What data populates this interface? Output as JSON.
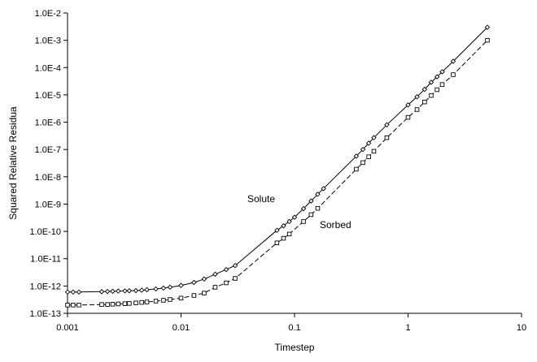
{
  "chart_data": {
    "type": "line",
    "title": "",
    "xlabel": "Timestep",
    "ylabel": "Squared Relative Residua",
    "xscale": "log",
    "yscale": "log",
    "xlim": [
      0.001,
      10
    ],
    "ylim": [
      1e-13,
      0.01
    ],
    "x_tick_labels": [
      "0.001",
      "0.01",
      "0.1",
      "1",
      "10"
    ],
    "y_tick_labels": [
      "1.0E-13",
      "1.0E-12",
      "1.0E-11",
      "1.0E-10",
      "1.0E-9",
      "1.0E-8",
      "1.0E-7",
      "1.0E-6",
      "1.0E-5",
      "1.0E-4",
      "1.0E-3",
      "1.0E-2"
    ],
    "grid": false,
    "legend": "none",
    "annotations": [
      {
        "text": "Solute",
        "series": "Solute"
      },
      {
        "text": "Sorbed",
        "series": "Sorbed"
      }
    ],
    "series": [
      {
        "name": "Solute",
        "line": "solid",
        "marker": "diamond",
        "color": "#000000",
        "x": [
          0.001,
          0.00112,
          0.00126,
          0.002,
          0.00225,
          0.0025,
          0.0028,
          0.0032,
          0.0035,
          0.004,
          0.0045,
          0.005,
          0.006,
          0.007,
          0.008,
          0.01,
          0.013,
          0.016,
          0.02,
          0.025,
          0.03,
          0.07,
          0.08,
          0.09,
          0.1,
          0.12,
          0.14,
          0.16,
          0.18,
          0.35,
          0.4,
          0.45,
          0.5,
          0.65,
          1,
          1.2,
          1.4,
          1.6,
          1.8,
          2,
          2.5,
          5
        ],
        "y": [
          6e-13,
          6e-13,
          6e-13,
          6.2e-13,
          6.3e-13,
          6.4e-13,
          6.5e-13,
          6.6e-13,
          6.7e-13,
          6.8e-13,
          7e-13,
          7.3e-13,
          7.8e-13,
          8.4e-13,
          9e-13,
          1.05e-12,
          1.35e-12,
          1.8e-12,
          2.7e-12,
          4e-12,
          5.6e-12,
          1.1e-10,
          1.6e-10,
          2.3e-10,
          3.3e-10,
          6.8e-10,
          1.3e-09,
          2.3e-09,
          3.7e-09,
          5.7e-08,
          1e-07,
          1.7e-07,
          2.7e-07,
          8e-07,
          4.3e-06,
          8.5e-06,
          1.6e-05,
          2.9e-05,
          4.6e-05,
          7e-05,
          0.00017,
          0.003
        ]
      },
      {
        "name": "Sorbed",
        "line": "dashed",
        "marker": "square",
        "color": "#000000",
        "x": [
          0.001,
          0.00112,
          0.00126,
          0.002,
          0.00225,
          0.0025,
          0.0028,
          0.0032,
          0.0035,
          0.004,
          0.0045,
          0.005,
          0.006,
          0.007,
          0.008,
          0.01,
          0.013,
          0.016,
          0.02,
          0.025,
          0.03,
          0.07,
          0.08,
          0.09,
          0.12,
          0.14,
          0.16,
          0.35,
          0.4,
          0.45,
          0.5,
          0.65,
          1,
          1.2,
          1.4,
          1.6,
          1.8,
          2,
          2.5,
          5
        ],
        "y": [
          2e-13,
          2e-13,
          2e-13,
          2.1e-13,
          2.1e-13,
          2.15e-13,
          2.2e-13,
          2.25e-13,
          2.3e-13,
          2.4e-13,
          2.5e-13,
          2.6e-13,
          2.8e-13,
          3e-13,
          3.2e-13,
          3.6e-13,
          4.5e-13,
          5.5e-13,
          9e-13,
          1.3e-12,
          1.9e-12,
          3.8e-11,
          5.6e-11,
          8e-11,
          2.3e-10,
          4.1e-10,
          7e-10,
          1.9e-08,
          3.3e-08,
          5.4e-08,
          8.6e-08,
          2.7e-07,
          1.5e-06,
          2.9e-06,
          5.5e-06,
          9.5e-06,
          1.55e-05,
          2.4e-05,
          5.5e-05,
          0.001
        ]
      }
    ]
  }
}
